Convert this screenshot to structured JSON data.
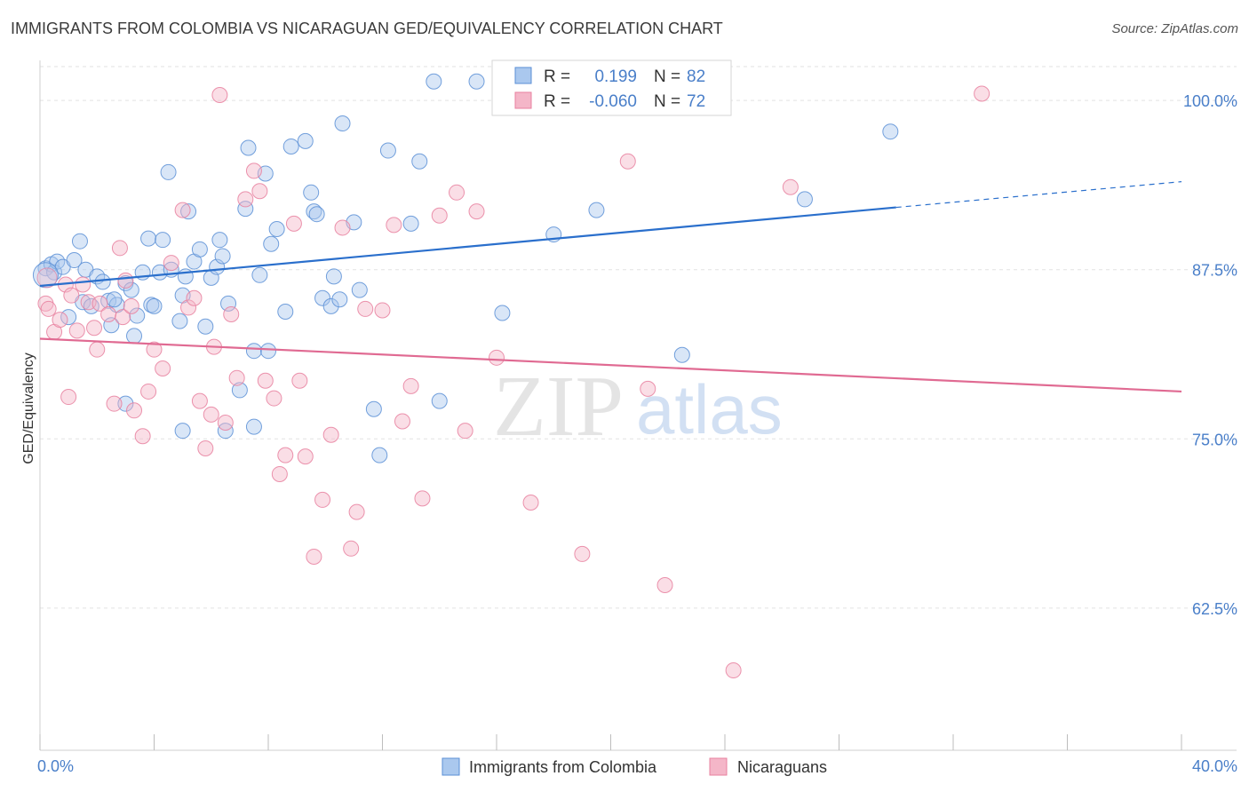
{
  "title": "IMMIGRANTS FROM COLOMBIA VS NICARAGUAN GED/EQUIVALENCY CORRELATION CHART",
  "source": "Source: ZipAtlas.com",
  "watermark": {
    "zip": "ZIP",
    "atlas": "atlas"
  },
  "colors": {
    "blue_fill": "#aac8ee",
    "blue_stroke": "#5b8fd6",
    "blue_line": "#2a6fcc",
    "pink_fill": "#f4b6c8",
    "pink_stroke": "#e8809f",
    "pink_line": "#e06a92",
    "accent_text": "#4a7fc9"
  },
  "stats": [
    {
      "r_label": "R =",
      "r_value": "0.199",
      "n_label": "N =",
      "n_value": "82"
    },
    {
      "r_label": "R =",
      "r_value": "-0.060",
      "n_label": "N =",
      "n_value": "72"
    }
  ],
  "chart_data": {
    "type": "scatter",
    "ylabel": "GED/Equivalency",
    "xlim": [
      0,
      40
    ],
    "ylim": [
      52,
      102.5
    ],
    "x_tick_labels": [
      "0.0%",
      "40.0%"
    ],
    "y_ticks": [
      {
        "value": 100.0,
        "label": "100.0%"
      },
      {
        "value": 87.5,
        "label": "87.5%"
      },
      {
        "value": 75.0,
        "label": "75.0%"
      },
      {
        "value": 62.5,
        "label": "62.5%"
      }
    ],
    "grid": true,
    "series": [
      {
        "name": "Immigrants from Colombia",
        "color": "blue",
        "trend": {
          "x0": 0,
          "y0": 86.3,
          "x1": 30,
          "y1": 92.1,
          "dash_to_x": 40,
          "dash_to_y": 94.0
        },
        "points": [
          [
            0.2,
            87.6
          ],
          [
            0.4,
            87.9
          ],
          [
            0.5,
            87.3
          ],
          [
            0.6,
            88.1
          ],
          [
            0.8,
            87.7
          ],
          [
            1.0,
            84.0
          ],
          [
            1.2,
            88.2
          ],
          [
            1.4,
            89.6
          ],
          [
            1.5,
            85.1
          ],
          [
            1.6,
            87.5
          ],
          [
            1.8,
            84.8
          ],
          [
            2.0,
            87.0
          ],
          [
            2.2,
            86.6
          ],
          [
            2.4,
            85.2
          ],
          [
            2.5,
            83.4
          ],
          [
            2.7,
            84.9
          ],
          [
            3.0,
            86.5
          ],
          [
            3.2,
            86.0
          ],
          [
            3.4,
            84.1
          ],
          [
            3.6,
            87.3
          ],
          [
            3.8,
            89.8
          ],
          [
            3.9,
            84.9
          ],
          [
            4.0,
            84.8
          ],
          [
            4.2,
            87.3
          ],
          [
            4.3,
            89.7
          ],
          [
            4.5,
            94.7
          ],
          [
            4.6,
            87.5
          ],
          [
            5.0,
            85.6
          ],
          [
            5.1,
            87.0
          ],
          [
            5.2,
            91.8
          ],
          [
            5.4,
            88.1
          ],
          [
            5.6,
            89.0
          ],
          [
            5.8,
            83.3
          ],
          [
            6.0,
            86.9
          ],
          [
            6.2,
            87.7
          ],
          [
            6.3,
            89.7
          ],
          [
            6.4,
            88.5
          ],
          [
            6.6,
            85.0
          ],
          [
            7.0,
            78.6
          ],
          [
            7.2,
            92.0
          ],
          [
            7.3,
            96.5
          ],
          [
            7.5,
            81.5
          ],
          [
            7.7,
            87.1
          ],
          [
            7.9,
            94.6
          ],
          [
            8.1,
            89.4
          ],
          [
            8.3,
            90.5
          ],
          [
            8.6,
            84.4
          ],
          [
            8.8,
            96.6
          ],
          [
            9.3,
            97.0
          ],
          [
            9.5,
            93.2
          ],
          [
            9.6,
            91.8
          ],
          [
            9.7,
            91.6
          ],
          [
            9.9,
            85.4
          ],
          [
            10.2,
            84.8
          ],
          [
            10.3,
            87.0
          ],
          [
            10.5,
            85.3
          ],
          [
            10.6,
            98.3
          ],
          [
            11.0,
            91.0
          ],
          [
            11.2,
            86.0
          ],
          [
            11.7,
            77.2
          ],
          [
            11.9,
            73.8
          ],
          [
            12.2,
            96.3
          ],
          [
            13.0,
            90.9
          ],
          [
            13.3,
            95.5
          ],
          [
            13.8,
            101.4
          ],
          [
            14.0,
            77.8
          ],
          [
            15.3,
            101.4
          ],
          [
            16.2,
            84.3
          ],
          [
            18.0,
            90.1
          ],
          [
            19.5,
            91.9
          ],
          [
            20.8,
            101.4
          ],
          [
            22.5,
            81.2
          ],
          [
            26.8,
            92.7
          ],
          [
            29.8,
            97.7
          ],
          [
            3.0,
            77.6
          ],
          [
            5.0,
            75.6
          ],
          [
            6.5,
            75.6
          ],
          [
            7.5,
            75.9
          ],
          [
            3.3,
            82.6
          ],
          [
            2.6,
            85.3
          ],
          [
            8.0,
            81.5
          ],
          [
            4.9,
            83.7
          ]
        ]
      },
      {
        "name": "Nicaraguans",
        "color": "pink",
        "trend": {
          "x0": 0,
          "y0": 82.4,
          "x1": 40,
          "y1": 78.5
        },
        "points": [
          [
            0.2,
            85.0
          ],
          [
            0.3,
            84.6
          ],
          [
            0.5,
            82.9
          ],
          [
            0.7,
            83.8
          ],
          [
            0.9,
            86.4
          ],
          [
            1.0,
            78.1
          ],
          [
            1.1,
            85.6
          ],
          [
            1.3,
            83.0
          ],
          [
            1.5,
            86.4
          ],
          [
            1.7,
            85.1
          ],
          [
            1.9,
            83.2
          ],
          [
            2.0,
            81.6
          ],
          [
            2.1,
            85.0
          ],
          [
            2.4,
            84.2
          ],
          [
            2.6,
            77.6
          ],
          [
            2.8,
            89.1
          ],
          [
            2.9,
            84.0
          ],
          [
            3.0,
            86.7
          ],
          [
            3.2,
            84.8
          ],
          [
            3.3,
            77.1
          ],
          [
            3.6,
            75.2
          ],
          [
            3.8,
            78.5
          ],
          [
            4.0,
            81.6
          ],
          [
            4.3,
            80.2
          ],
          [
            4.6,
            88.0
          ],
          [
            5.0,
            91.9
          ],
          [
            5.2,
            84.7
          ],
          [
            5.4,
            85.4
          ],
          [
            5.6,
            77.8
          ],
          [
            5.8,
            74.3
          ],
          [
            6.0,
            76.8
          ],
          [
            6.1,
            81.8
          ],
          [
            6.3,
            100.4
          ],
          [
            6.5,
            76.2
          ],
          [
            6.7,
            84.2
          ],
          [
            6.9,
            79.5
          ],
          [
            7.2,
            92.7
          ],
          [
            7.5,
            94.8
          ],
          [
            7.7,
            93.3
          ],
          [
            7.9,
            79.3
          ],
          [
            8.2,
            78.0
          ],
          [
            8.4,
            72.4
          ],
          [
            8.6,
            73.8
          ],
          [
            8.9,
            90.9
          ],
          [
            9.1,
            79.3
          ],
          [
            9.3,
            73.7
          ],
          [
            9.6,
            66.3
          ],
          [
            9.9,
            70.5
          ],
          [
            10.2,
            75.3
          ],
          [
            10.6,
            90.6
          ],
          [
            10.9,
            66.9
          ],
          [
            11.1,
            69.6
          ],
          [
            11.4,
            84.6
          ],
          [
            12.0,
            84.5
          ],
          [
            12.4,
            90.8
          ],
          [
            12.7,
            76.3
          ],
          [
            13.0,
            78.9
          ],
          [
            13.4,
            70.6
          ],
          [
            14.0,
            91.5
          ],
          [
            14.6,
            93.2
          ],
          [
            14.9,
            75.6
          ],
          [
            15.3,
            91.8
          ],
          [
            16.0,
            81.0
          ],
          [
            17.2,
            70.3
          ],
          [
            19.0,
            66.5
          ],
          [
            20.6,
            95.5
          ],
          [
            21.3,
            78.7
          ],
          [
            21.9,
            64.2
          ],
          [
            23.5,
            100.4
          ],
          [
            24.3,
            57.9
          ],
          [
            26.3,
            93.6
          ],
          [
            33.0,
            100.5
          ]
        ]
      }
    ]
  }
}
